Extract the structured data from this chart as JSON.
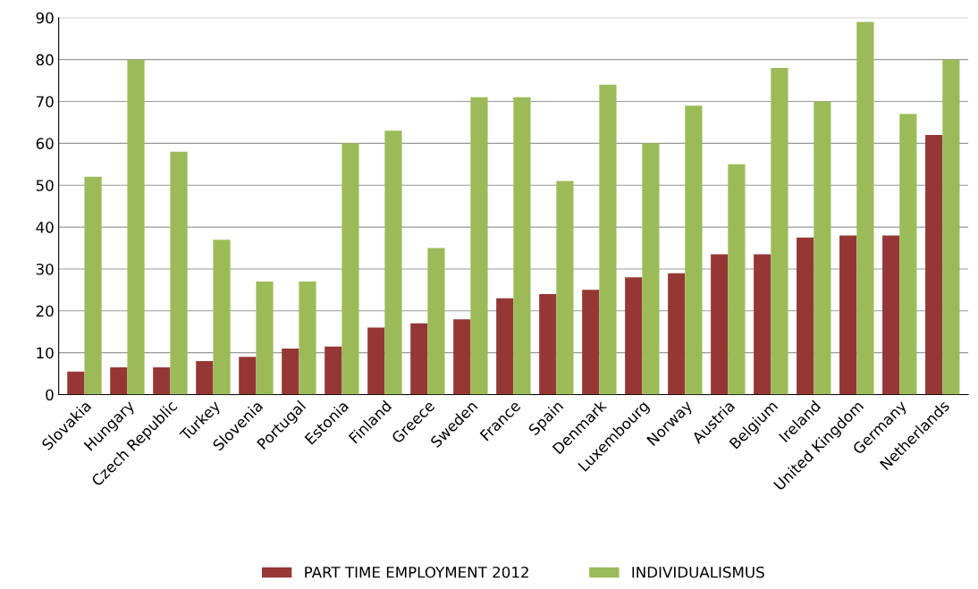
{
  "chart_data": {
    "type": "bar",
    "categories": [
      "Slovakia",
      "Hungary",
      "Czech Republic",
      "Turkey",
      "Slovenia",
      "Portugal",
      "Estonia",
      "Finland",
      "Greece",
      "Sweden",
      "France",
      "Spain",
      "Denmark",
      "Luxembourg",
      "Norway",
      "Austria",
      "Belgium",
      "Ireland",
      "United Kingdom",
      "Germany",
      "Netherlands"
    ],
    "series": [
      {
        "name": "PART TIME EMPLOYMENT 2012",
        "color": "#953735",
        "values": [
          5.5,
          6.5,
          6.5,
          8,
          9,
          11,
          11.5,
          16,
          17,
          18,
          23,
          24,
          25,
          28,
          29,
          33.5,
          33.5,
          37.5,
          38,
          38,
          62
        ]
      },
      {
        "name": "INDIVIDUALISMUS",
        "color": "#9bbb59",
        "values": [
          52,
          80,
          58,
          37,
          27,
          27,
          60,
          63,
          35,
          71,
          71,
          51,
          74,
          60,
          69,
          55,
          78,
          70,
          89,
          67,
          80
        ]
      }
    ],
    "ylim": [
      0,
      90
    ],
    "yticks": [
      0,
      10,
      20,
      30,
      40,
      50,
      60,
      70,
      80,
      90
    ],
    "grid": "y",
    "legend": "bottom"
  }
}
